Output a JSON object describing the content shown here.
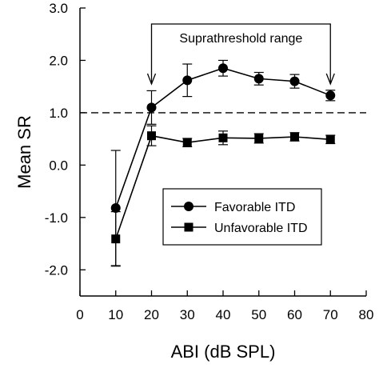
{
  "chart_data": {
    "type": "line",
    "xlabel": "ABI (dB SPL)",
    "ylabel": "Mean SR",
    "xlim": [
      0,
      80
    ],
    "ylim": [
      -2.5,
      3.0
    ],
    "xticks": [
      0,
      10,
      20,
      30,
      40,
      50,
      60,
      70,
      80
    ],
    "yticks": [
      3.0,
      2.0,
      1.0,
      0.0,
      -1.0,
      -2.0
    ],
    "ytick_labels": [
      "3.0",
      "2.0",
      "1.0",
      "0.0",
      "-1.0",
      "-2.0"
    ],
    "reference_line": {
      "y": 1.0,
      "style": "dashed"
    },
    "annotation": {
      "text": "Suprathreshold range",
      "x_start": 20,
      "x_end": 70
    },
    "legend_position": "center-right",
    "grid": false,
    "series": [
      {
        "name": "Favorable ITD",
        "marker": "circle",
        "x": [
          10,
          20,
          30,
          40,
          50,
          60,
          70
        ],
        "y": [
          -0.82,
          1.1,
          1.62,
          1.85,
          1.65,
          1.6,
          1.33
        ],
        "err": [
          1.1,
          0.32,
          0.31,
          0.15,
          0.12,
          0.13,
          0.1
        ]
      },
      {
        "name": "Unfavorable ITD",
        "marker": "square",
        "x": [
          10,
          20,
          30,
          40,
          50,
          60,
          70
        ],
        "y": [
          -1.41,
          0.56,
          0.43,
          0.52,
          0.51,
          0.54,
          0.49
        ],
        "err": [
          0.52,
          0.19,
          0.08,
          0.13,
          0.09,
          0.08,
          0.08
        ]
      }
    ]
  }
}
